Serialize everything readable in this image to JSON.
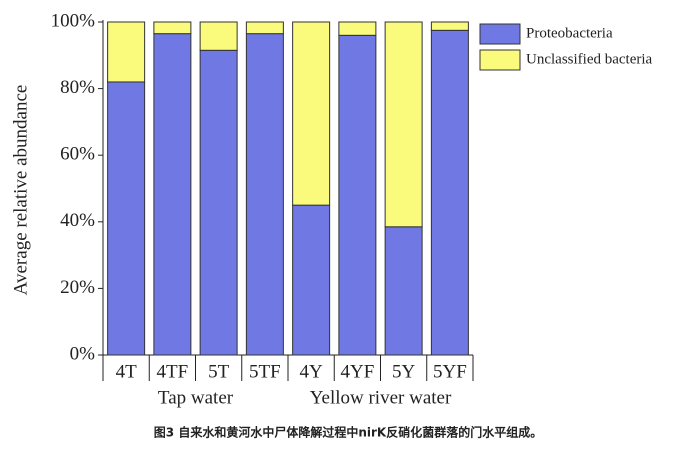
{
  "chart_data": {
    "type": "stacked_bar",
    "ylabel": "Average relative abundance",
    "categories": [
      "4T",
      "4TF",
      "5T",
      "5TF",
      "4Y",
      "4YF",
      "5Y",
      "5YF"
    ],
    "groups": [
      "Tap water",
      "Yellow river water"
    ],
    "series": [
      {
        "name": "Proteobacteria",
        "color": "#6f78e3",
        "values": [
          82,
          96.5,
          91.5,
          96.5,
          45,
          96,
          38.5,
          97.5
        ]
      },
      {
        "name": "Unclassified bacteria",
        "color": "#fafa7c",
        "values": [
          18,
          3.5,
          8.5,
          3.5,
          55,
          4,
          61.5,
          2.5
        ]
      }
    ],
    "ylim": [
      0,
      100
    ],
    "yticks": [
      {
        "value": 0,
        "label": "0%"
      },
      {
        "value": 20,
        "label": "20%"
      },
      {
        "value": 40,
        "label": "40%"
      },
      {
        "value": 60,
        "label": "60%"
      },
      {
        "value": 80,
        "label": "80%"
      },
      {
        "value": 100,
        "label": "100%"
      }
    ],
    "legend": "right",
    "caption": "图3 自来水和黄河水中尸体降解过程中nirK反硝化菌群落的门水平组成。"
  }
}
